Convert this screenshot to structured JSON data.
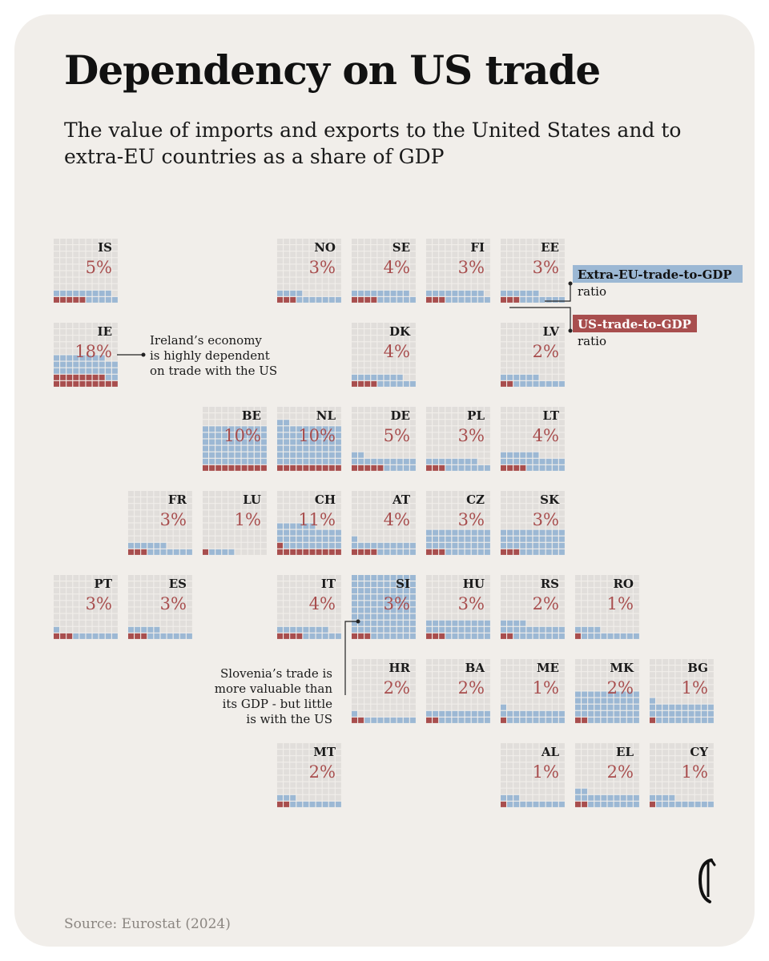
{
  "title": "Dependency on US trade",
  "subtitle": "The value of imports and exports to the United States and to extra-EU countries as a share of GDP",
  "source": "Source: Eurostat (2024)",
  "colors": {
    "background": "#f1eeea",
    "empty_cell": "#e1dedb",
    "extra_eu": "#9cb8d4",
    "us": "#a84e4e",
    "pct_text": "#a84e4e",
    "legend_blue_bg": "#9cb8d4",
    "legend_red_bg": "#a84e4e"
  },
  "legend": {
    "extra_eu_label": "Extra-EU-trade-to-GDP",
    "extra_eu_suffix": "ratio",
    "us_label": "US-trade-to-GDP",
    "us_suffix": "ratio"
  },
  "annotations": {
    "ireland": [
      "Ireland’s economy",
      "is highly dependent",
      "on trade with the US"
    ],
    "slovenia": [
      "Slovenia’s trade is",
      "more valuable than",
      "its GDP - but little",
      "is with the US"
    ]
  },
  "chart_data": {
    "type": "waffle-tile-map",
    "unit_note": "Each tile is a 10x10 grid; blue cells = extra-EU trade as % of GDP, red cells = US trade as % of GDP",
    "countries": [
      {
        "code": "IS",
        "col": 0,
        "row": 0,
        "us_pct_label": "5%",
        "us_cells": 5,
        "extra_cells": 14
      },
      {
        "code": "NO",
        "col": 3,
        "row": 0,
        "us_pct_label": "3%",
        "us_cells": 3,
        "extra_cells": 11
      },
      {
        "code": "SE",
        "col": 4,
        "row": 0,
        "us_pct_label": "4%",
        "us_cells": 4,
        "extra_cells": 15
      },
      {
        "code": "FI",
        "col": 5,
        "row": 0,
        "us_pct_label": "3%",
        "us_cells": 3,
        "extra_cells": 16
      },
      {
        "code": "EE",
        "col": 6,
        "row": 0,
        "us_pct_label": "3%",
        "us_cells": 3,
        "extra_cells": 13
      },
      {
        "code": "IE",
        "col": 0,
        "row": 1,
        "us_pct_label": "18%",
        "us_cells": 18,
        "extra_cells": 30
      },
      {
        "code": "DK",
        "col": 4,
        "row": 1,
        "us_pct_label": "4%",
        "us_cells": 4,
        "extra_cells": 14
      },
      {
        "code": "LV",
        "col": 6,
        "row": 1,
        "us_pct_label": "2%",
        "us_cells": 2,
        "extra_cells": 14
      },
      {
        "code": "BE",
        "col": 2,
        "row": 2,
        "us_pct_label": "10%",
        "us_cells": 10,
        "extra_cells": 60
      },
      {
        "code": "NL",
        "col": 3,
        "row": 2,
        "us_pct_label": "10%",
        "us_cells": 10,
        "extra_cells": 62
      },
      {
        "code": "DE",
        "col": 4,
        "row": 2,
        "us_pct_label": "5%",
        "us_cells": 5,
        "extra_cells": 17
      },
      {
        "code": "PL",
        "col": 5,
        "row": 2,
        "us_pct_label": "3%",
        "us_cells": 3,
        "extra_cells": 15
      },
      {
        "code": "LT",
        "col": 6,
        "row": 2,
        "us_pct_label": "4%",
        "us_cells": 4,
        "extra_cells": 22
      },
      {
        "code": "FR",
        "col": 1,
        "row": 3,
        "us_pct_label": "3%",
        "us_cells": 3,
        "extra_cells": 13
      },
      {
        "code": "LU",
        "col": 2,
        "row": 3,
        "us_pct_label": "1%",
        "us_cells": 1,
        "extra_cells": 4
      },
      {
        "code": "CH",
        "col": 3,
        "row": 3,
        "us_pct_label": "11%",
        "us_cells": 11,
        "extra_cells": 35
      },
      {
        "code": "AT",
        "col": 4,
        "row": 3,
        "us_pct_label": "4%",
        "us_cells": 4,
        "extra_cells": 17
      },
      {
        "code": "CZ",
        "col": 5,
        "row": 3,
        "us_pct_label": "3%",
        "us_cells": 3,
        "extra_cells": 37
      },
      {
        "code": "SK",
        "col": 6,
        "row": 3,
        "us_pct_label": "3%",
        "us_cells": 3,
        "extra_cells": 37
      },
      {
        "code": "PT",
        "col": 0,
        "row": 4,
        "us_pct_label": "3%",
        "us_cells": 3,
        "extra_cells": 8
      },
      {
        "code": "ES",
        "col": 1,
        "row": 4,
        "us_pct_label": "3%",
        "us_cells": 3,
        "extra_cells": 12
      },
      {
        "code": "IT",
        "col": 3,
        "row": 4,
        "us_pct_label": "4%",
        "us_cells": 4,
        "extra_cells": 14
      },
      {
        "code": "SI",
        "col": 4,
        "row": 4,
        "us_pct_label": "3%",
        "us_cells": 3,
        "extra_cells": 97
      },
      {
        "code": "HU",
        "col": 5,
        "row": 4,
        "us_pct_label": "3%",
        "us_cells": 3,
        "extra_cells": 27
      },
      {
        "code": "RS",
        "col": 6,
        "row": 4,
        "us_pct_label": "2%",
        "us_cells": 2,
        "extra_cells": 22
      },
      {
        "code": "RO",
        "col": 7,
        "row": 4,
        "us_pct_label": "1%",
        "us_cells": 1,
        "extra_cells": 13
      },
      {
        "code": "HR",
        "col": 4,
        "row": 5,
        "us_pct_label": "2%",
        "us_cells": 2,
        "extra_cells": 9
      },
      {
        "code": "BA",
        "col": 5,
        "row": 5,
        "us_pct_label": "2%",
        "us_cells": 2,
        "extra_cells": 18
      },
      {
        "code": "ME",
        "col": 6,
        "row": 5,
        "us_pct_label": "1%",
        "us_cells": 1,
        "extra_cells": 20
      },
      {
        "code": "MK",
        "col": 7,
        "row": 5,
        "us_pct_label": "2%",
        "us_cells": 2,
        "extra_cells": 48
      },
      {
        "code": "BG",
        "col": 8,
        "row": 5,
        "us_pct_label": "1%",
        "us_cells": 1,
        "extra_cells": 30
      },
      {
        "code": "MT",
        "col": 3,
        "row": 6,
        "us_pct_label": "2%",
        "us_cells": 2,
        "extra_cells": 11
      },
      {
        "code": "AL",
        "col": 6,
        "row": 6,
        "us_pct_label": "1%",
        "us_cells": 1,
        "extra_cells": 12
      },
      {
        "code": "EL",
        "col": 7,
        "row": 6,
        "us_pct_label": "2%",
        "us_cells": 2,
        "extra_cells": 20
      },
      {
        "code": "CY",
        "col": 8,
        "row": 6,
        "us_pct_label": "1%",
        "us_cells": 1,
        "extra_cells": 13
      }
    ]
  }
}
